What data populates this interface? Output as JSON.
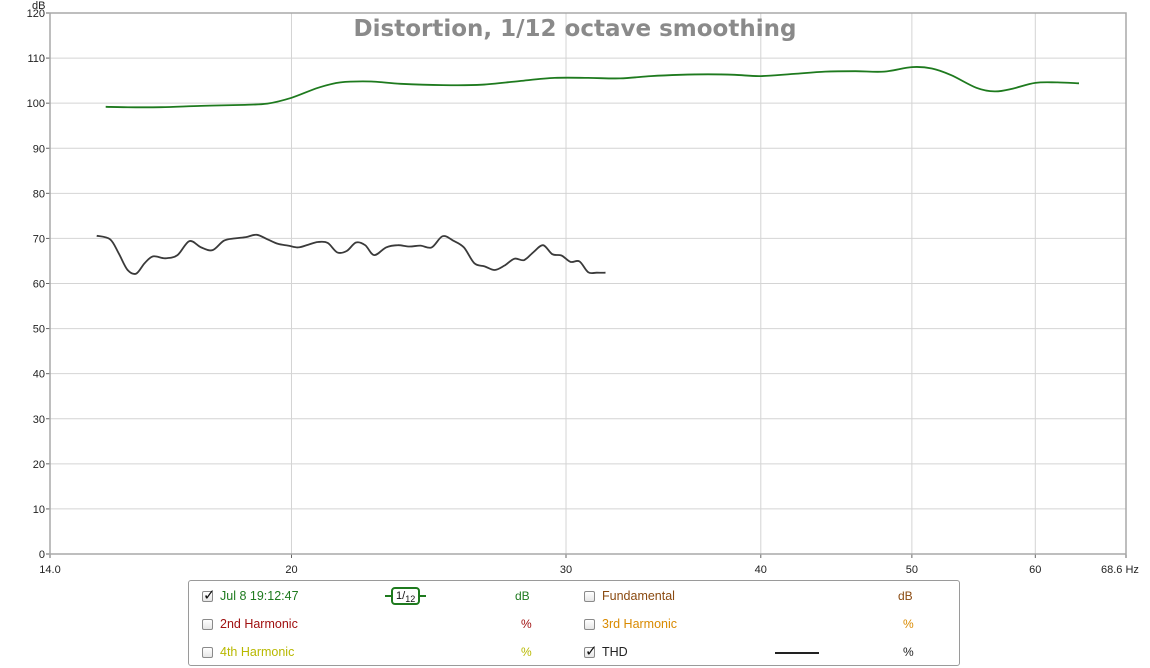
{
  "chart_data": {
    "type": "line",
    "title": "Distortion, 1/12 octave smoothing",
    "ylabel": "dB",
    "xlabel": "Hz",
    "x_scale": "log",
    "xlim": [
      14.0,
      68.6
    ],
    "ylim": [
      0,
      120
    ],
    "x_ticks": [
      {
        "value": 14.0,
        "label": "14.0"
      },
      {
        "value": 20,
        "label": "20"
      },
      {
        "value": 30,
        "label": "30"
      },
      {
        "value": 40,
        "label": "40"
      },
      {
        "value": 50,
        "label": "50"
      },
      {
        "value": 60,
        "label": "60"
      },
      {
        "value": 68.6,
        "label": "68.6 Hz"
      }
    ],
    "y_ticks": [
      0,
      10,
      20,
      30,
      40,
      50,
      60,
      70,
      80,
      90,
      100,
      110,
      120
    ],
    "grid": true,
    "series": [
      {
        "name": "Jul 8 19:12:47",
        "color": "#1e7a1e",
        "x": [
          15.2,
          15.6,
          16.5,
          17.5,
          18.5,
          19.3,
          20.0,
          20.8,
          21.5,
          22.5,
          23.5,
          25.0,
          26.5,
          28.0,
          29.5,
          31.0,
          32.5,
          34.0,
          35.5,
          37.0,
          38.5,
          40.0,
          42.0,
          44.0,
          46.0,
          48.0,
          50.0,
          51.5,
          53.0,
          55.0,
          56.5,
          58.0,
          60.0,
          62.0,
          64.0
        ],
        "values": [
          99.2,
          99.1,
          99.1,
          99.4,
          99.6,
          99.9,
          101.2,
          103.4,
          104.6,
          104.8,
          104.3,
          104.0,
          104.1,
          104.9,
          105.6,
          105.6,
          105.5,
          106.0,
          106.3,
          106.4,
          106.3,
          106.0,
          106.5,
          107.0,
          107.1,
          107.0,
          108.0,
          107.7,
          106.2,
          103.4,
          102.6,
          103.2,
          104.5,
          104.6,
          104.4
        ]
      },
      {
        "name": "THD",
        "color": "#3a3a3a",
        "x": [
          15.0,
          15.3,
          15.5,
          15.7,
          15.9,
          16.1,
          16.3,
          16.6,
          16.9,
          17.2,
          17.5,
          17.8,
          18.1,
          18.4,
          18.7,
          19.0,
          19.3,
          19.6,
          19.9,
          20.2,
          20.5,
          20.8,
          21.1,
          21.4,
          21.7,
          22.0,
          22.3,
          22.6,
          23.0,
          23.4,
          23.8,
          24.2,
          24.6,
          25.0,
          25.4,
          25.8,
          26.2,
          26.6,
          27.0,
          27.4,
          27.8,
          28.2,
          28.6,
          29.0,
          29.4,
          29.8,
          30.2,
          30.6,
          31.0,
          31.4,
          31.8
        ],
        "values": [
          70.6,
          69.8,
          66.6,
          63.0,
          62.2,
          64.5,
          66.0,
          65.6,
          66.3,
          69.4,
          68.0,
          67.4,
          69.5,
          70.0,
          70.3,
          70.8,
          69.8,
          68.8,
          68.4,
          68.0,
          68.6,
          69.2,
          69.0,
          66.9,
          67.2,
          69.1,
          68.5,
          66.3,
          68.0,
          68.5,
          68.2,
          68.4,
          68.0,
          70.5,
          69.5,
          68.0,
          64.5,
          63.8,
          63.0,
          64.0,
          65.5,
          65.2,
          67.0,
          68.5,
          66.5,
          66.2,
          64.8,
          64.9,
          62.5,
          62.4,
          62.4
        ]
      }
    ],
    "legend_placement": "bottom"
  },
  "legend": {
    "measurement": {
      "label": "Jul 8 19:12:47",
      "checked": true,
      "unit": "dB",
      "color": "#1e7a1e"
    },
    "smoothing": {
      "num": "1",
      "den": "12"
    },
    "fundamental": {
      "label": "Fundamental",
      "checked": false,
      "unit": "dB",
      "color": "#8a4a10"
    },
    "harmonic2": {
      "label": "2nd Harmonic",
      "checked": false,
      "unit": "%",
      "color": "#a01010"
    },
    "harmonic3": {
      "label": "3rd Harmonic",
      "checked": false,
      "unit": "%",
      "color": "#d98a00"
    },
    "harmonic4": {
      "label": "4th Harmonic",
      "checked": false,
      "unit": "%",
      "color": "#b8b800"
    },
    "thd": {
      "label": "THD",
      "checked": true,
      "unit": "%",
      "color": "#222222"
    }
  }
}
